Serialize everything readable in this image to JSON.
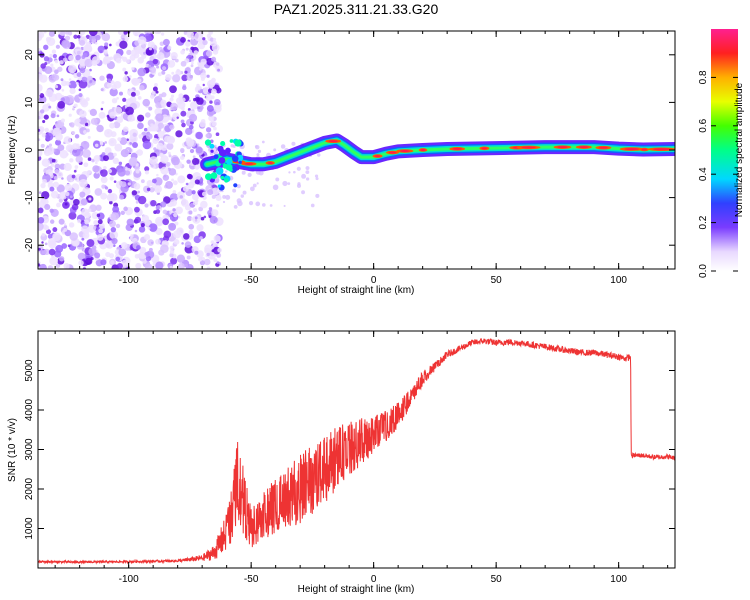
{
  "figure": {
    "title": "PAZ1.2025.311.21.33.G20"
  },
  "chart_data": [
    {
      "type": "heatmap",
      "title": "PAZ1.2025.311.21.33.G20",
      "xlabel": "Height of straight line (km)",
      "ylabel": "Frequency (Hz)",
      "xlim": [
        -137,
        123
      ],
      "ylim": [
        -25,
        25
      ],
      "xticks": [
        -100,
        -50,
        0,
        50,
        100
      ],
      "yticks": [
        -20,
        -10,
        0,
        10,
        20
      ],
      "noise_region_x": [
        -137,
        -67
      ],
      "ridge": {
        "x": [
          -68,
          -60,
          -55,
          -50,
          -45,
          -40,
          -35,
          -30,
          -25,
          -20,
          -15,
          -12,
          -8,
          -5,
          0,
          5,
          10,
          20,
          30,
          50,
          70,
          90,
          100,
          110,
          123
        ],
        "freq": [
          -3,
          -2,
          -2.5,
          -3,
          -3,
          -2.5,
          -1.5,
          -0.5,
          0.5,
          1.5,
          2,
          1,
          -0.5,
          -1.5,
          -1.5,
          -0.8,
          -0.3,
          0,
          0.2,
          0.4,
          0.6,
          0.6,
          0.3,
          0.1,
          0.2
        ]
      },
      "colorbar": {
        "label": "Normalized spectral amplitude",
        "ticks": [
          "0.0",
          "0.2",
          "0.4",
          "0.6",
          "0.8"
        ],
        "range": [
          0,
          1
        ]
      }
    },
    {
      "type": "line",
      "xlabel": "Height of straight line (km)",
      "ylabel": "SNR (10 * v/v)",
      "xlim": [
        -137,
        123
      ],
      "ylim": [
        0,
        6000
      ],
      "xticks": [
        -100,
        -50,
        0,
        50,
        100
      ],
      "yticks": [
        1000,
        2000,
        3000,
        4000,
        5000
      ],
      "color": "#ee3333",
      "series": [
        {
          "name": "SNR",
          "x": [
            -137,
            -120,
            -100,
            -80,
            -70,
            -65,
            -60,
            -57,
            -55,
            -52,
            -50,
            -45,
            -40,
            -35,
            -30,
            -25,
            -20,
            -15,
            -10,
            -5,
            0,
            5,
            10,
            15,
            20,
            25,
            30,
            35,
            40,
            45,
            50,
            55,
            60,
            65,
            70,
            75,
            80,
            85,
            90,
            95,
            100,
            103,
            104.9,
            105.1,
            110,
            115,
            120,
            123
          ],
          "y": [
            160,
            150,
            160,
            180,
            250,
            400,
            900,
            1700,
            2300,
            1400,
            1000,
            1300,
            1600,
            1800,
            2000,
            2200,
            2500,
            2800,
            3000,
            3200,
            3400,
            3600,
            3900,
            4300,
            4800,
            5100,
            5400,
            5550,
            5700,
            5750,
            5700,
            5720,
            5700,
            5650,
            5600,
            5550,
            5500,
            5450,
            5450,
            5400,
            5350,
            5300,
            5350,
            2850,
            2850,
            2800,
            2820,
            2780
          ],
          "amplitude": [
            25,
            25,
            25,
            30,
            80,
            200,
            500,
            900,
            1100,
            800,
            500,
            600,
            700,
            800,
            900,
            900,
            900,
            800,
            700,
            600,
            500,
            400,
            350,
            250,
            180,
            120,
            90,
            80,
            80,
            80,
            80,
            80,
            80,
            80,
            80,
            80,
            80,
            80,
            80,
            80,
            80,
            80,
            80,
            60,
            60,
            60,
            60,
            60
          ]
        }
      ]
    }
  ]
}
